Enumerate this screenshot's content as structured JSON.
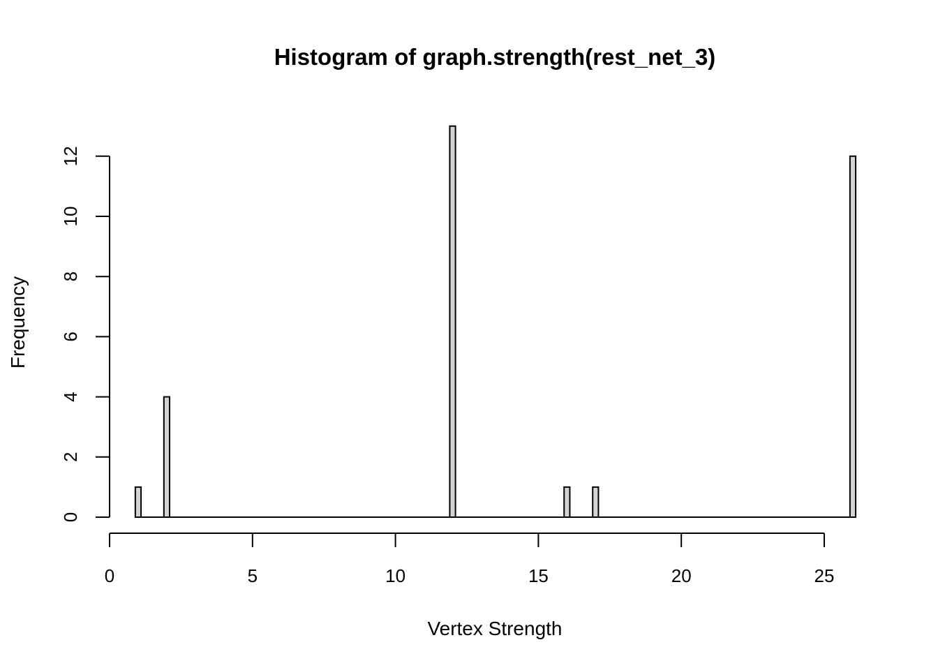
{
  "chart_data": {
    "type": "bar",
    "title": "Histogram of graph.strength(rest_net_3)",
    "xlabel": "Vertex Strength",
    "ylabel": "Frequency",
    "xlim": [
      0,
      26
    ],
    "ylim": [
      0,
      13
    ],
    "x_ticks": [
      0,
      5,
      10,
      15,
      20,
      25
    ],
    "y_ticks": [
      0,
      2,
      4,
      6,
      8,
      10,
      12
    ],
    "bin_width": 0.2,
    "bins": [
      {
        "x": 1,
        "value": 1
      },
      {
        "x": 2,
        "value": 4
      },
      {
        "x": 12,
        "value": 13
      },
      {
        "x": 16,
        "value": 1
      },
      {
        "x": 17,
        "value": 1
      },
      {
        "x": 26,
        "value": 12
      }
    ],
    "bar_color": "#d3d3d3"
  }
}
